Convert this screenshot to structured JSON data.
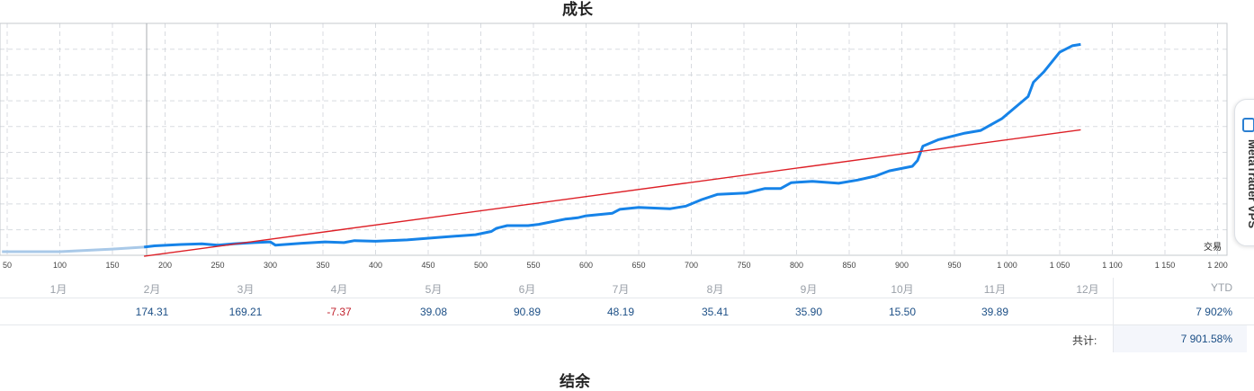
{
  "chart_data": {
    "type": "line",
    "title": "成长",
    "xlabel": "交易",
    "xlim": [
      45,
      1200
    ],
    "x_ticks": [
      "50",
      "100",
      "150",
      "200",
      "250",
      "300",
      "350",
      "400",
      "450",
      "500",
      "550",
      "600",
      "650",
      "700",
      "750",
      "800",
      "850",
      "900",
      "950",
      "1 000",
      "1 050",
      "1 100",
      "1 150",
      "1 200"
    ],
    "grid": true,
    "series": [
      {
        "color": "#1683e8",
        "x": [
          45,
          100,
          150,
          180,
          190,
          215,
          235,
          250,
          265,
          285,
          300,
          305,
          330,
          352,
          370,
          380,
          400,
          430,
          460,
          495,
          510,
          515,
          525,
          545,
          555,
          580,
          592,
          600,
          625,
          632,
          650,
          680,
          695,
          710,
          725,
          752,
          770,
          785,
          795,
          815,
          840,
          858,
          875,
          888,
          910,
          915,
          920,
          935,
          960,
          975,
          995,
          1020,
          1025,
          1035,
          1050,
          1062,
          1070
        ],
        "y": [
          0,
          0,
          0.2,
          0.35,
          0.45,
          0.55,
          0.6,
          0.5,
          0.6,
          0.7,
          0.75,
          0.5,
          0.65,
          0.75,
          0.7,
          0.85,
          0.8,
          0.9,
          1.1,
          1.3,
          1.55,
          1.8,
          2.0,
          2.0,
          2.1,
          2.5,
          2.6,
          2.75,
          2.95,
          3.25,
          3.4,
          3.3,
          3.5,
          4.0,
          4.4,
          4.5,
          4.85,
          4.85,
          5.3,
          5.4,
          5.25,
          5.5,
          5.8,
          6.2,
          6.55,
          7.0,
          8.1,
          8.6,
          9.1,
          9.3,
          10.2,
          11.9,
          13.0,
          13.8,
          15.3,
          15.8,
          15.9
        ]
      },
      {
        "color": "#dd1f26",
        "x": [
          180,
          1070
        ],
        "y": [
          -0.35,
          9.35
        ]
      }
    ]
  },
  "table": {
    "months": [
      "1月",
      "2月",
      "3月",
      "4月",
      "5月",
      "6月",
      "7月",
      "8月",
      "9月",
      "10月",
      "11月",
      "12月"
    ],
    "values": [
      "",
      "174.31",
      "169.21",
      "-7.37",
      "39.08",
      "90.89",
      "48.19",
      "35.41",
      "35.90",
      "15.50",
      "39.89",
      ""
    ],
    "ytd_label": "YTD",
    "ytd_value": "7 902%",
    "total_label": "共计:",
    "total_value": "7 901.58%"
  },
  "next_section_title": "结余",
  "vps_tab": {
    "label": "MetaTrader VPS",
    "icon": "server-icon",
    "accent": "#2b7fd1"
  }
}
